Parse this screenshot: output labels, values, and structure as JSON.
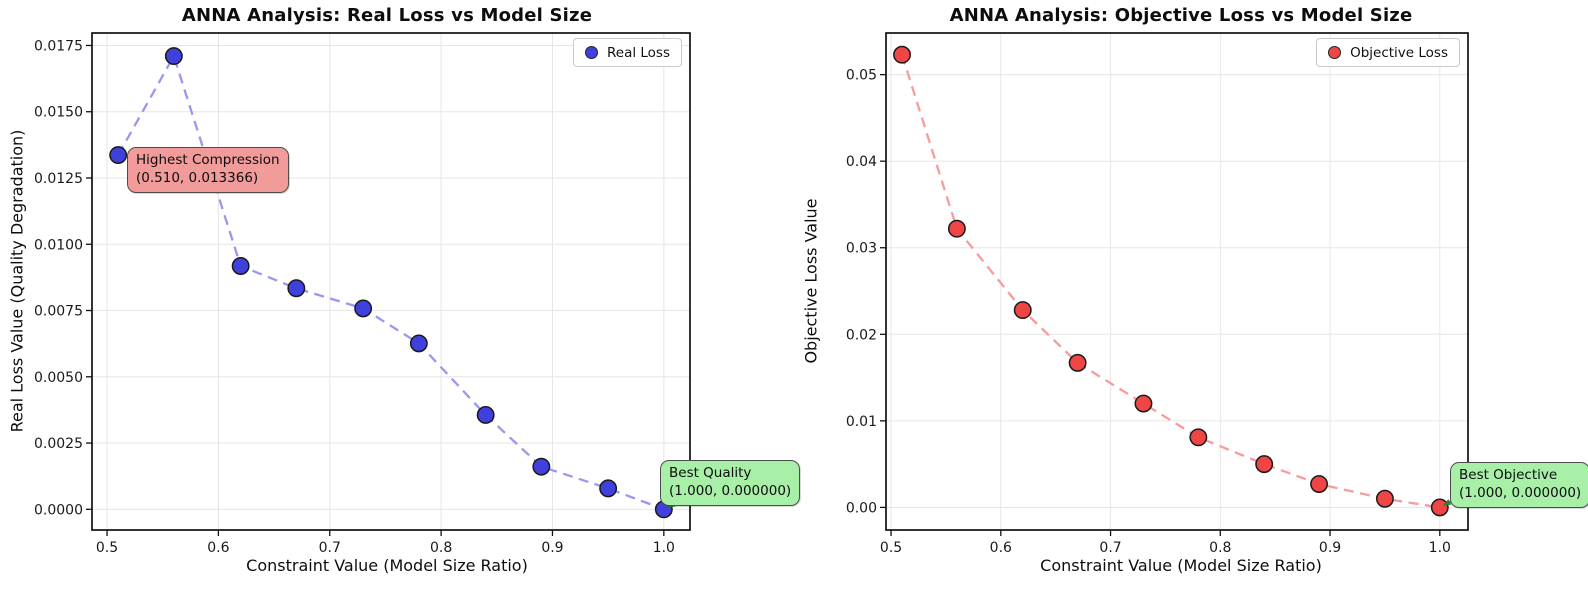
{
  "figure": {
    "background": "#ffffff",
    "grid": true,
    "line_style": "dashed"
  },
  "chart_data": [
    {
      "type": "scatter",
      "title": "ANNA Analysis: Real Loss vs Model Size",
      "xlabel": "Constraint Value (Model Size Ratio)",
      "ylabel": "Real Loss Value (Quality Degradation)",
      "legend": {
        "label": "Real Loss",
        "position": "upper right"
      },
      "x": [
        0.51,
        0.56,
        0.62,
        0.67,
        0.73,
        0.78,
        0.84,
        0.89,
        0.95,
        1.0
      ],
      "y": [
        0.013366,
        0.0171,
        0.00918,
        0.00834,
        0.00758,
        0.00626,
        0.00356,
        0.00161,
        0.00079,
        0.0
      ],
      "xlim": [
        0.4865,
        1.0235
      ],
      "ylim": [
        -0.00078,
        0.01797
      ],
      "xticks": [
        0.5,
        0.6,
        0.7,
        0.8,
        0.9,
        1.0
      ],
      "xtick_labels": [
        "0.5",
        "0.6",
        "0.7",
        "0.8",
        "0.9",
        "1.0"
      ],
      "yticks": [
        0.0,
        0.0025,
        0.005,
        0.0075,
        0.01,
        0.0125,
        0.015,
        0.0175
      ],
      "ytick_labels": [
        "0.0000",
        "0.0025",
        "0.0050",
        "0.0075",
        "0.0100",
        "0.0125",
        "0.0150",
        "0.0175"
      ],
      "colors": {
        "marker": "#4040dd",
        "marker_edge": "#1a1a1a",
        "line": "#9898ee"
      },
      "annotations": [
        {
          "name": "highest-compression",
          "lines": [
            "Highest Compression",
            "(0.510, 0.013366)"
          ],
          "target_x": 0.51,
          "target_y": 0.013366,
          "box_color": "#f29b9b",
          "arrow_color": "#cc3333"
        },
        {
          "name": "best-quality",
          "lines": [
            "Best Quality",
            "(1.000, 0.000000)"
          ],
          "target_x": 1.0,
          "target_y": 0.0,
          "box_color": "#a8f0a8",
          "arrow_color": "#2e7d32"
        }
      ]
    },
    {
      "type": "scatter",
      "title": "ANNA Analysis: Objective Loss vs Model Size",
      "xlabel": "Constraint Value (Model Size Ratio)",
      "ylabel": "Objective Loss Value",
      "legend": {
        "label": "Objective Loss",
        "position": "upper right"
      },
      "x": [
        0.51,
        0.56,
        0.62,
        0.67,
        0.73,
        0.78,
        0.84,
        0.89,
        0.95,
        1.0
      ],
      "y": [
        0.0523,
        0.0322,
        0.0228,
        0.0167,
        0.012,
        0.0081,
        0.005,
        0.0027,
        0.001,
        0.0
      ],
      "xlim": [
        0.4954,
        1.0257
      ],
      "ylim": [
        -0.00261,
        0.05481
      ],
      "xticks": [
        0.5,
        0.6,
        0.7,
        0.8,
        0.9,
        1.0
      ],
      "xtick_labels": [
        "0.5",
        "0.6",
        "0.7",
        "0.8",
        "0.9",
        "1.0"
      ],
      "yticks": [
        0.0,
        0.01,
        0.02,
        0.03,
        0.04,
        0.05
      ],
      "ytick_labels": [
        "0.00",
        "0.01",
        "0.02",
        "0.03",
        "0.04",
        "0.05"
      ],
      "colors": {
        "marker": "#f04545",
        "marker_edge": "#1a1a1a",
        "line": "#f79c9c"
      },
      "annotations": [
        {
          "name": "best-objective",
          "lines": [
            "Best Objective",
            "(1.000, 0.000000)"
          ],
          "target_x": 1.0,
          "target_y": 0.0,
          "box_color": "#a8f0a8",
          "arrow_color": "#2e7d32"
        }
      ]
    }
  ]
}
